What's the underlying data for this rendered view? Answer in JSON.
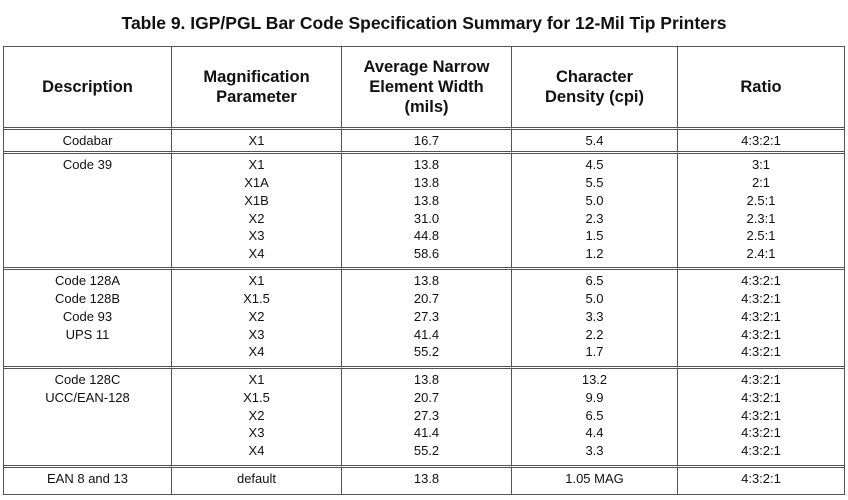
{
  "title": "Table 9. IGP/PGL Bar Code Specification Summary for 12-Mil Tip Printers",
  "headers": {
    "description": "Description",
    "magnification": [
      "Magnification",
      "Parameter"
    ],
    "width": [
      "Average Narrow",
      "Element Width",
      "(mils)"
    ],
    "density": [
      "Character",
      "Density (cpi)"
    ],
    "ratio": "Ratio"
  },
  "rows": [
    {
      "description": [
        "Codabar"
      ],
      "magnification": [
        "X1"
      ],
      "width": [
        "16.7"
      ],
      "density": [
        "5.4"
      ],
      "ratio": [
        "4:3:2:1"
      ]
    },
    {
      "description": [
        "Code 39"
      ],
      "magnification": [
        "X1",
        "X1A",
        "X1B",
        "X2",
        "X3",
        "X4"
      ],
      "width": [
        "13.8",
        "13.8",
        "13.8",
        "31.0",
        "44.8",
        "58.6"
      ],
      "density": [
        "4.5",
        "5.5",
        "5.0",
        "2.3",
        "1.5",
        "1.2"
      ],
      "ratio": [
        "3:1",
        "2:1",
        "2.5:1",
        "2.3:1",
        "2.5:1",
        "2.4:1"
      ]
    },
    {
      "description": [
        "Code 128A",
        "Code 128B",
        "Code 93",
        "UPS 11"
      ],
      "magnification": [
        "X1",
        "X1.5",
        "X2",
        "X3",
        "X4"
      ],
      "width": [
        "13.8",
        "20.7",
        "27.3",
        "41.4",
        "55.2"
      ],
      "density": [
        "6.5",
        "5.0",
        "3.3",
        "2.2",
        "1.7"
      ],
      "ratio": [
        "4:3:2:1",
        "4:3:2:1",
        "4:3:2:1",
        "4:3:2:1",
        "4:3:2:1"
      ]
    },
    {
      "description": [
        "Code 128C",
        "UCC/EAN-128"
      ],
      "magnification": [
        "X1",
        "X1.5",
        "X2",
        "X3",
        "X4"
      ],
      "width": [
        "13.8",
        "20.7",
        "27.3",
        "41.4",
        "55.2"
      ],
      "density": [
        "13.2",
        "9.9",
        "6.5",
        "4.4",
        "3.3"
      ],
      "ratio": [
        "4:3:2:1",
        "4:3:2:1",
        "4:3:2:1",
        "4:3:2:1",
        "4:3:2:1"
      ]
    },
    {
      "description": [
        "EAN 8 and 13"
      ],
      "magnification": [
        "default"
      ],
      "width": [
        "13.8"
      ],
      "density": [
        "1.05 MAG"
      ],
      "ratio": [
        "4:3:2:1"
      ]
    }
  ]
}
